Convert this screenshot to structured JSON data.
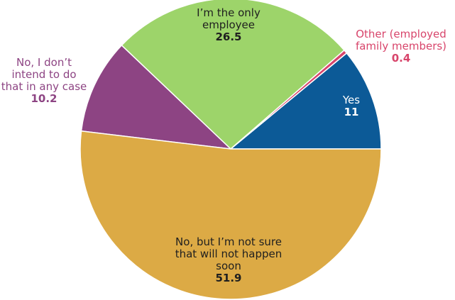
{
  "chart_data": {
    "type": "pie",
    "categories": [
      "Yes",
      "Other (employed family members)",
      "I’m the only employee",
      "No, I don’t intend to do that in any case",
      "No, but I’m not sure that will not happen soon"
    ],
    "values": [
      11,
      0.4,
      26.5,
      10.2,
      51.9
    ],
    "colors": [
      "#0c5a97",
      "#d8456b",
      "#9dd46a",
      "#8d4483",
      "#dcaa45"
    ]
  }
}
